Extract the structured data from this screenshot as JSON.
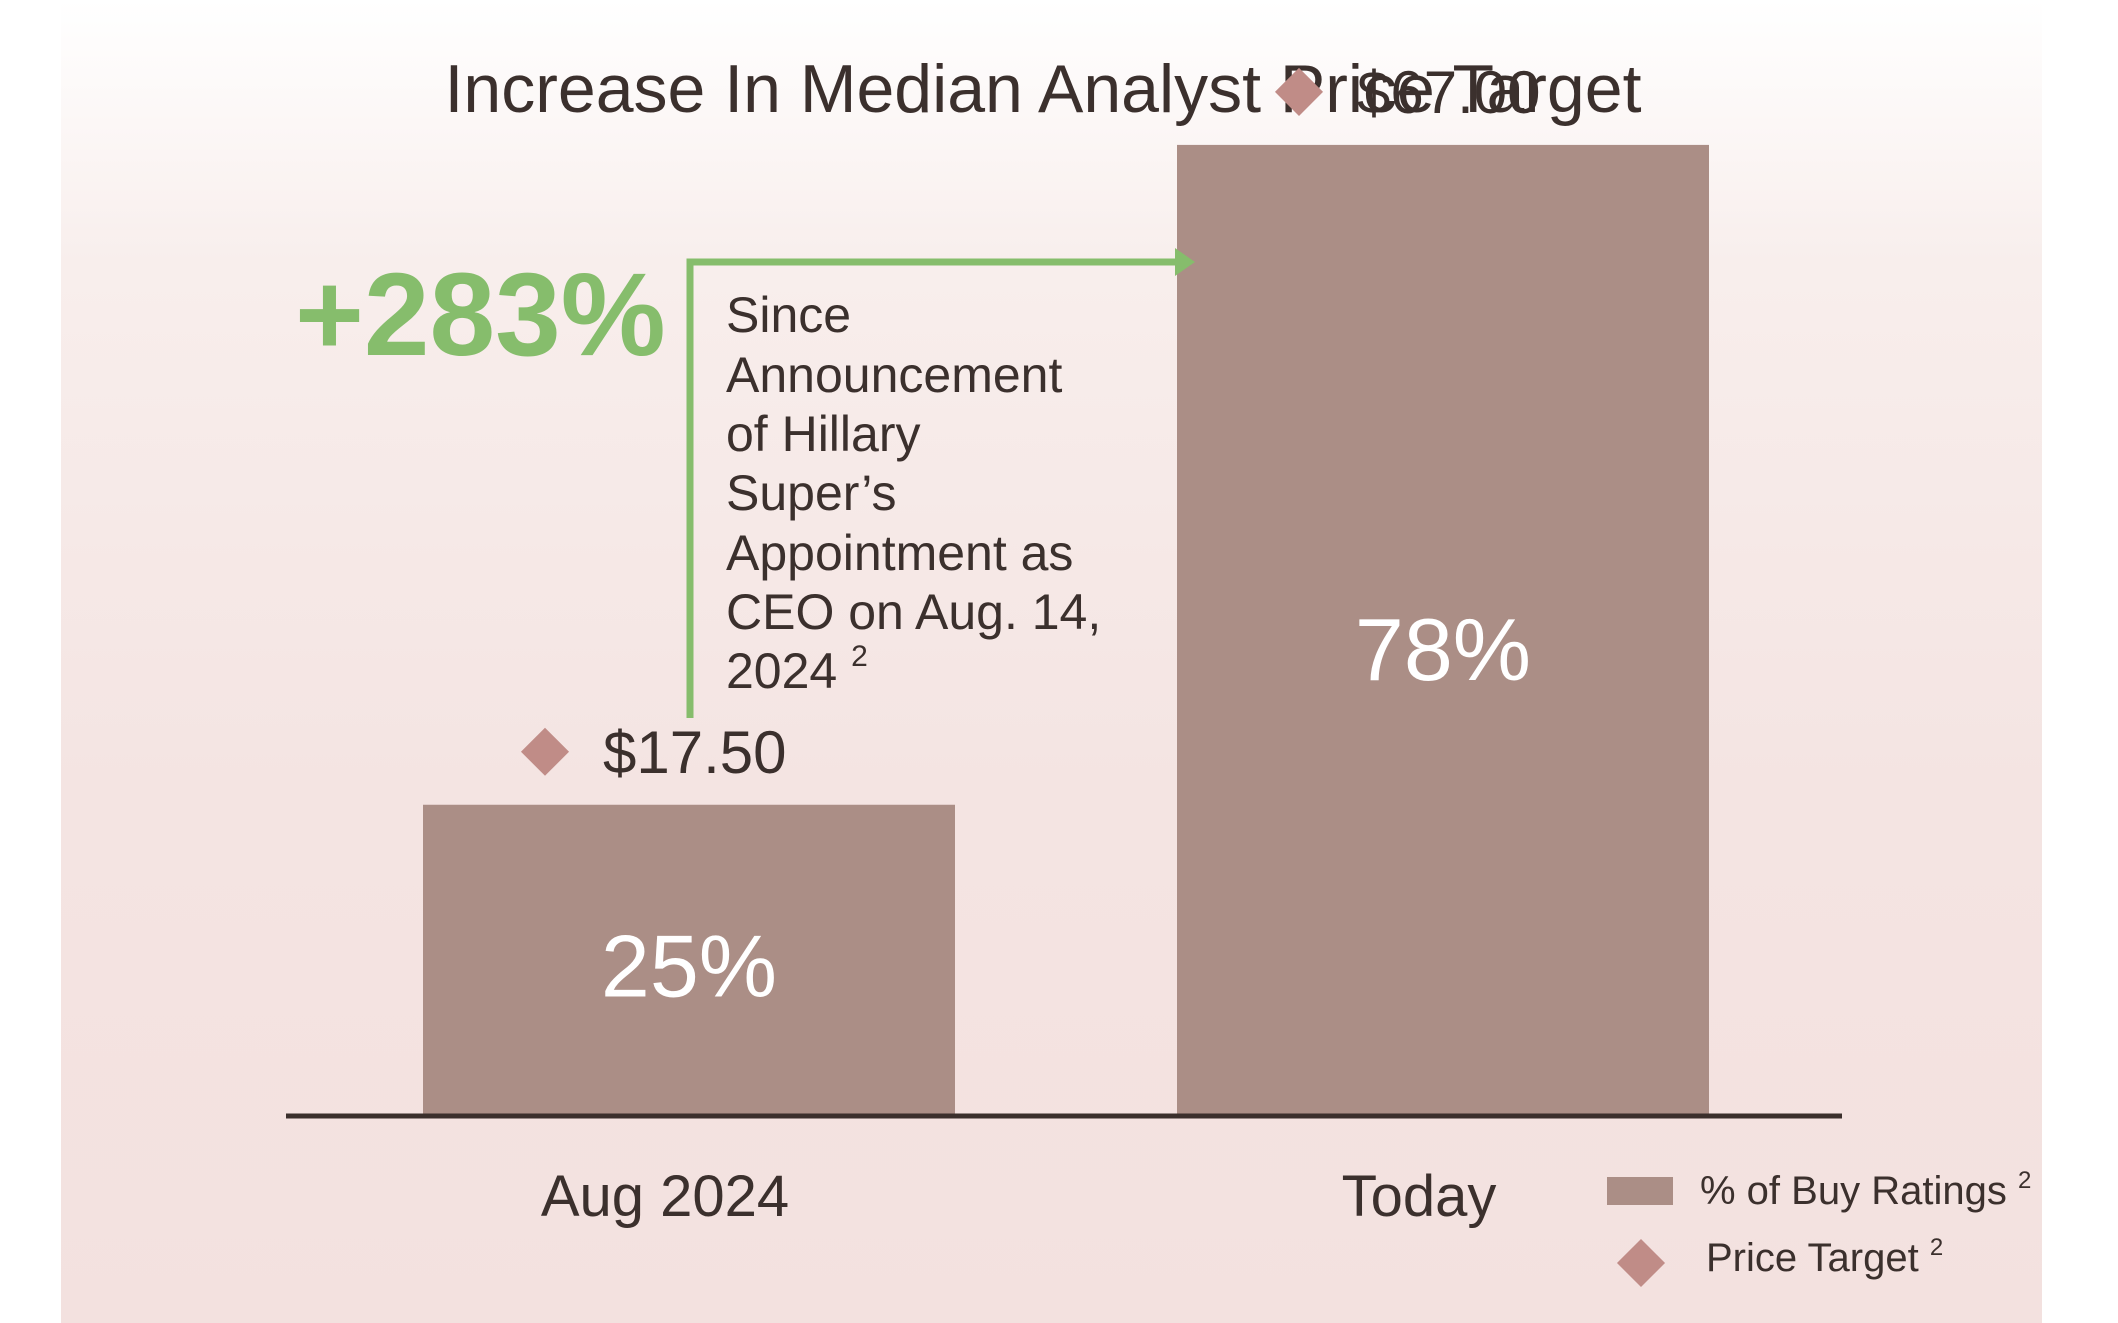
{
  "colors": {
    "bar": "#ab8e86",
    "diamond": "#c08c87",
    "accent": "#86bd6c",
    "axis": "#3b2f2c",
    "text": "#3b302d"
  },
  "chart_data": {
    "type": "bar",
    "title": "Increase In Median Analyst Price Target",
    "categories": [
      "Aug 2024",
      "Today"
    ],
    "series": [
      {
        "name": "% of Buy Ratings",
        "values": [
          25,
          78
        ],
        "labels": [
          "25%",
          "78%"
        ]
      },
      {
        "name": "Price Target",
        "values": [
          17.5,
          67.0
        ],
        "labels": [
          "$17.50",
          "$67.00"
        ]
      }
    ],
    "annotation": {
      "value": "+283%",
      "text_lines": [
        "Since",
        "Announcement",
        "of Hillary",
        "Super’s",
        "Appointment as",
        "CEO on Aug. 14,",
        "2024"
      ],
      "superscript": "2"
    },
    "legend": {
      "position": "bottom-right",
      "items": [
        {
          "label": "% of Buy Ratings",
          "superscript": "2",
          "marker": "square"
        },
        {
          "label": "Price Target",
          "superscript": "2",
          "marker": "diamond"
        }
      ]
    },
    "ylim": [
      0,
      80
    ],
    "grid": false
  }
}
